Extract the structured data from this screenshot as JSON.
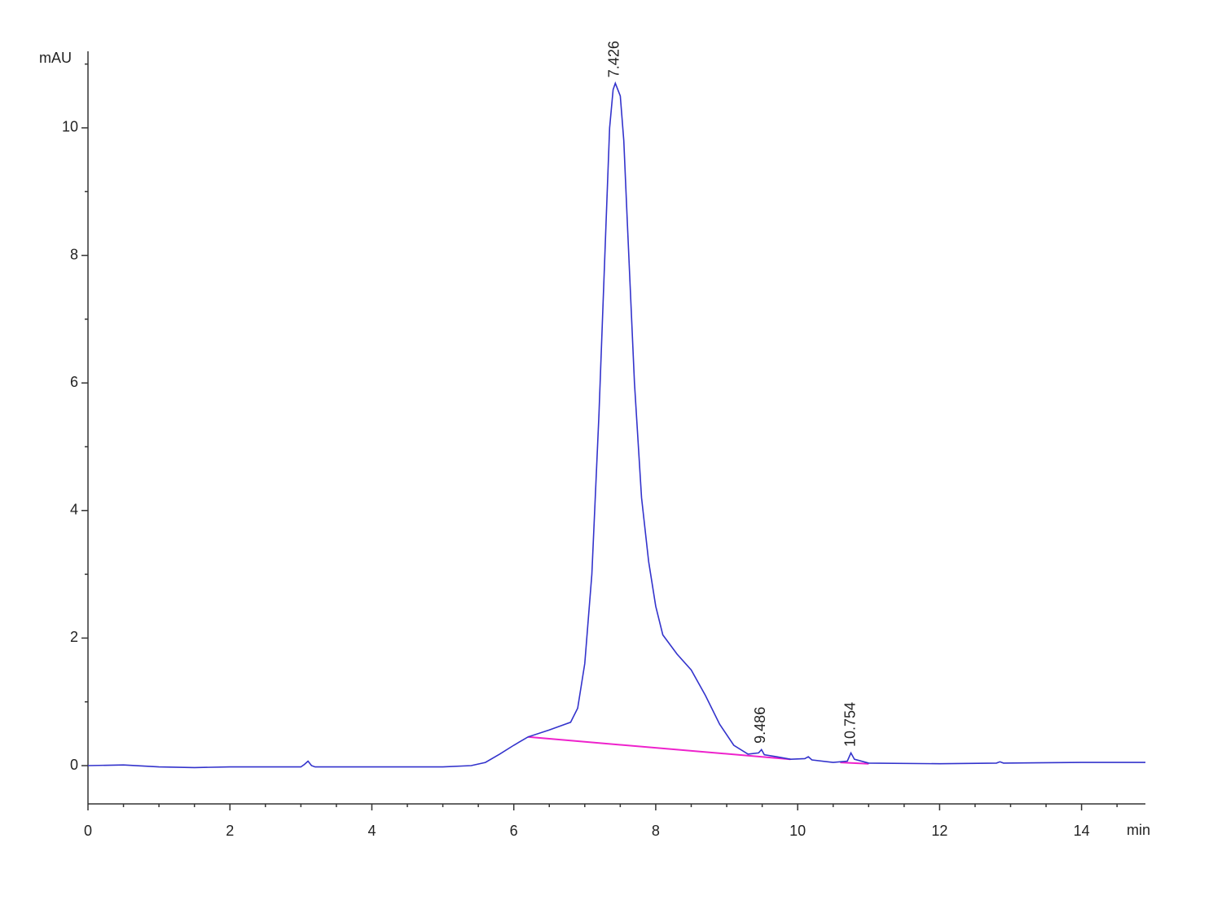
{
  "chart_data": {
    "type": "line",
    "y_label": "mAU",
    "x_label": "min",
    "xlim": [
      0,
      14.9
    ],
    "ylim": [
      -0.6,
      11.2
    ],
    "xticks": [
      0,
      2,
      4,
      6,
      8,
      10,
      12,
      14
    ],
    "yticks": [
      0,
      2,
      4,
      6,
      8,
      10
    ],
    "xminorticks": [
      0.5,
      1,
      1.5,
      2.5,
      3,
      3.5,
      4.5,
      5,
      5.5,
      6.5,
      7,
      7.5,
      8.5,
      9,
      9.5,
      10.5,
      11,
      11.5,
      12.5,
      13,
      13.5,
      14.5
    ],
    "yminorticks": [
      1,
      3,
      5,
      7,
      9,
      11
    ],
    "signal": {
      "color": "#3333cc",
      "x": [
        0,
        0.5,
        1,
        1.5,
        2,
        2.5,
        3,
        3.05,
        3.1,
        3.15,
        3.2,
        4,
        5,
        5.4,
        5.6,
        5.8,
        6,
        6.2,
        6.5,
        6.8,
        6.9,
        7.0,
        7.1,
        7.2,
        7.3,
        7.35,
        7.4,
        7.43,
        7.5,
        7.55,
        7.6,
        7.7,
        7.8,
        7.9,
        8.0,
        8.1,
        8.3,
        8.5,
        8.7,
        8.9,
        9.1,
        9.3,
        9.45,
        9.49,
        9.53,
        9.7,
        9.9,
        10.1,
        10.15,
        10.2,
        10.5,
        10.7,
        10.75,
        10.8,
        11,
        12,
        12.8,
        12.85,
        12.9,
        14,
        14.9
      ],
      "values": [
        0,
        0.01,
        -0.02,
        -0.03,
        -0.02,
        -0.02,
        -0.02,
        0.02,
        0.07,
        0,
        -0.02,
        -0.02,
        -0.02,
        0,
        0.05,
        0.18,
        0.32,
        0.45,
        0.56,
        0.68,
        0.9,
        1.6,
        3.0,
        5.5,
        8.5,
        10.0,
        10.6,
        10.7,
        10.5,
        9.8,
        8.5,
        6.0,
        4.2,
        3.2,
        2.5,
        2.05,
        1.75,
        1.5,
        1.1,
        0.65,
        0.32,
        0.18,
        0.2,
        0.25,
        0.17,
        0.14,
        0.1,
        0.11,
        0.14,
        0.09,
        0.05,
        0.07,
        0.2,
        0.1,
        0.04,
        0.03,
        0.04,
        0.06,
        0.04,
        0.05,
        0.05
      ]
    },
    "baselines": [
      {
        "color": "#ee22cc",
        "x": [
          6.2,
          9.9
        ],
        "values": [
          0.45,
          0.1
        ]
      },
      {
        "color": "#ee22cc",
        "x": [
          10.6,
          11.0
        ],
        "values": [
          0.05,
          0.03
        ]
      }
    ],
    "peaks": [
      7.426,
      9.486,
      10.754
    ]
  }
}
